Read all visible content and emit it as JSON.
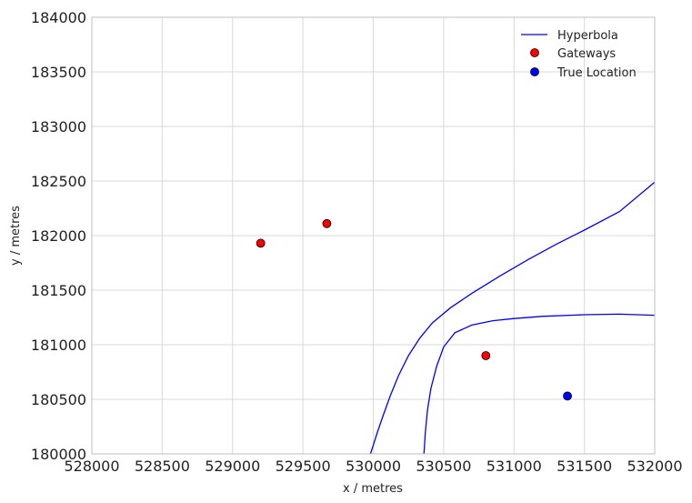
{
  "chart_data": {
    "type": "scatter",
    "title": "",
    "xlabel": "x / metres",
    "ylabel": "y / metres",
    "xlim": [
      528000,
      532000
    ],
    "ylim": [
      180000,
      184000
    ],
    "x_ticks": [
      "528000",
      "528500",
      "529000",
      "529500",
      "530000",
      "530500",
      "531000",
      "531500",
      "532000"
    ],
    "y_ticks": [
      "180000",
      "180500",
      "181000",
      "181500",
      "182000",
      "182500",
      "183000",
      "183500",
      "184000"
    ],
    "grid": true,
    "legend_position": "top-right",
    "hyperbola_series": [
      {
        "name": "Hyperbola",
        "color": "#0000ff",
        "points": [
          [
            529980,
            180000
          ],
          [
            530000,
            180080
          ],
          [
            530030,
            180200
          ],
          [
            530070,
            180350
          ],
          [
            530120,
            180530
          ],
          [
            530180,
            180720
          ],
          [
            530250,
            180900
          ],
          [
            530330,
            181060
          ],
          [
            530420,
            181200
          ],
          [
            530550,
            181340
          ],
          [
            530700,
            181470
          ],
          [
            530900,
            181630
          ],
          [
            531100,
            181780
          ],
          [
            531300,
            181920
          ],
          [
            531500,
            182050
          ],
          [
            531750,
            182220
          ],
          [
            532000,
            182490
          ]
        ]
      },
      {
        "name": "",
        "color": "#0000ff",
        "points": [
          [
            530360,
            180000
          ],
          [
            530370,
            180200
          ],
          [
            530385,
            180400
          ],
          [
            530410,
            180600
          ],
          [
            530450,
            180800
          ],
          [
            530500,
            180980
          ],
          [
            530580,
            181110
          ],
          [
            530700,
            181180
          ],
          [
            530850,
            181220
          ],
          [
            531000,
            181240
          ],
          [
            531200,
            181260
          ],
          [
            531500,
            181275
          ],
          [
            531750,
            181280
          ],
          [
            532000,
            181270
          ]
        ]
      }
    ],
    "gateways": {
      "name": "Gateways",
      "color": "#ff0000",
      "points": [
        [
          529200,
          181930
        ],
        [
          529670,
          182110
        ],
        [
          530800,
          180900
        ]
      ]
    },
    "true_location": {
      "name": "True Location",
      "color": "#0000ff",
      "points": [
        [
          531380,
          180530
        ]
      ]
    }
  }
}
